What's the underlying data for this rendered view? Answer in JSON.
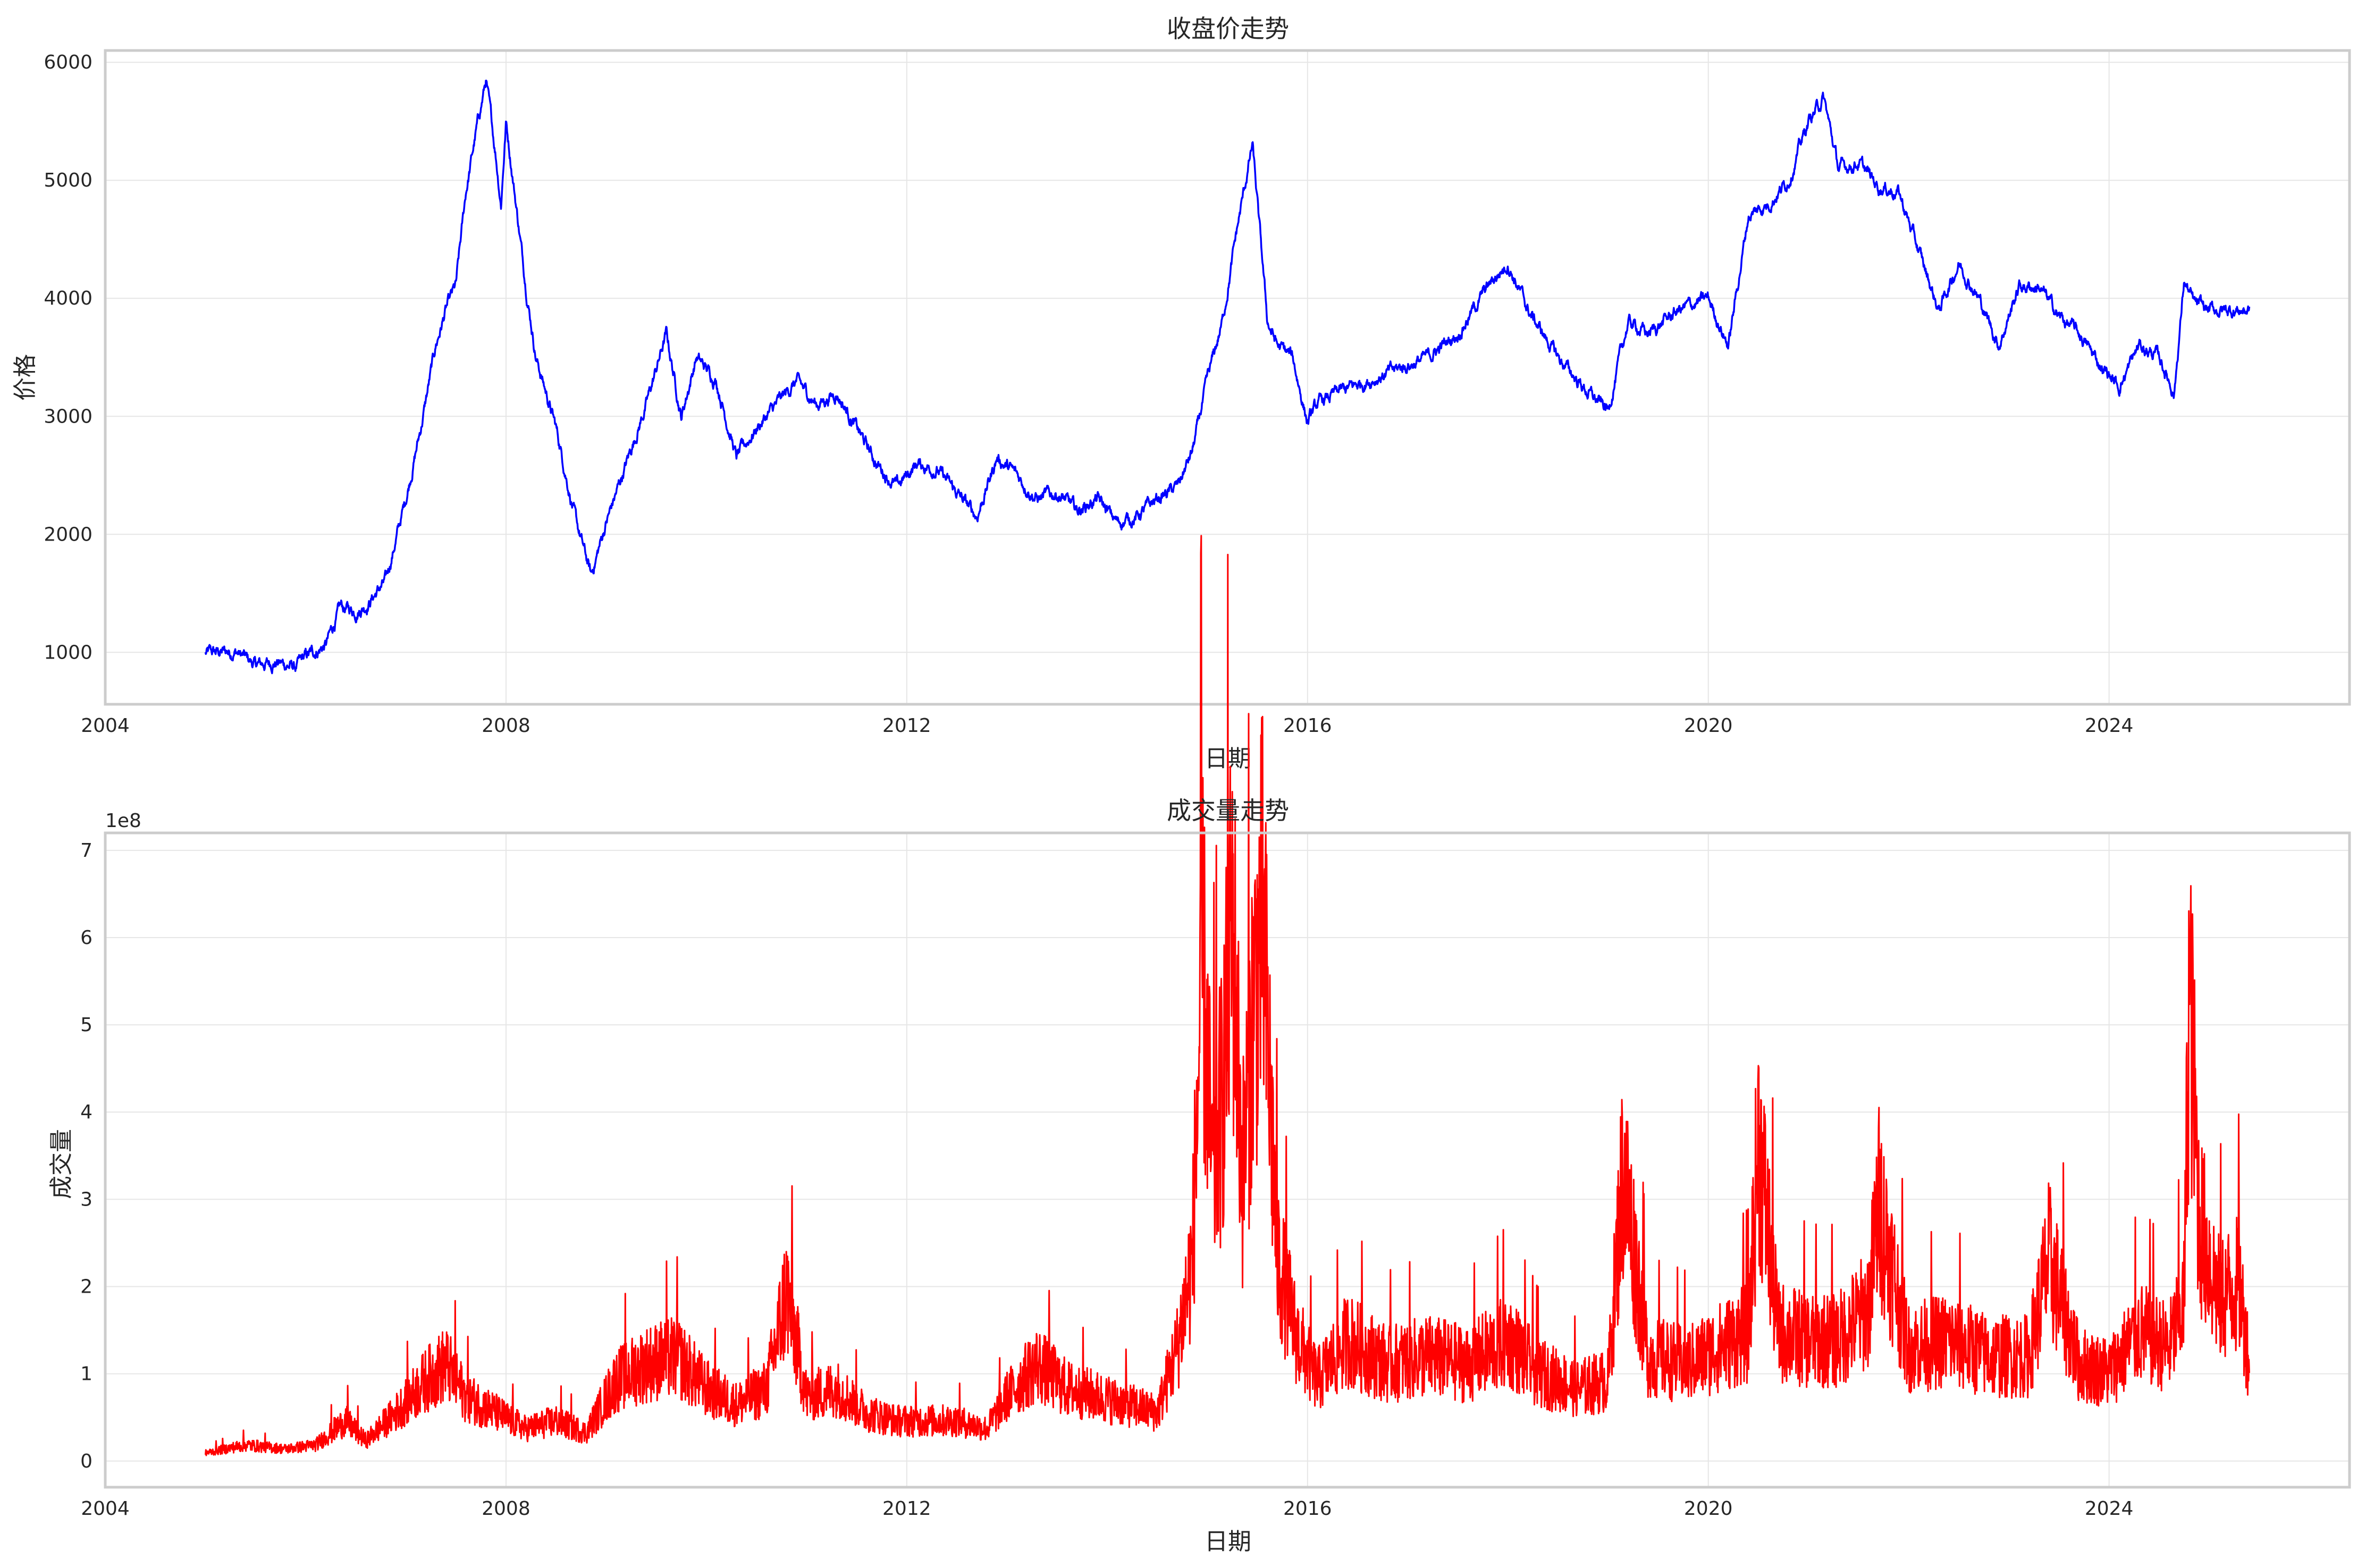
{
  "chart_data": [
    {
      "type": "line",
      "title": "收盘价走势",
      "xlabel": "日期",
      "ylabel": "价格",
      "x_ticks": [
        "2004",
        "2008",
        "2012",
        "2016",
        "2020",
        "2024"
      ],
      "y_ticks": [
        "1000",
        "2000",
        "3000",
        "4000",
        "5000",
        "6000"
      ],
      "xlim": [
        2004.0,
        2026.4
      ],
      "ylim": [
        560,
        6100
      ],
      "grid": true,
      "color": "#0000ff",
      "series": [
        {
          "x": [
            2005.0,
            2005.3,
            2005.5,
            2005.7,
            2005.9,
            2006.0,
            2006.2,
            2006.35,
            2006.5,
            2006.6,
            2006.8,
            2007.0,
            2007.15,
            2007.3,
            2007.4,
            2007.5,
            2007.6,
            2007.7,
            2007.8,
            2007.9,
            2007.95,
            2008.0,
            2008.1,
            2008.2,
            2008.3,
            2008.5,
            2008.7,
            2008.85,
            2009.0,
            2009.2,
            2009.4,
            2009.6,
            2009.75,
            2009.9,
            2010.1,
            2010.3,
            2010.5,
            2010.7,
            2010.9,
            2011.1,
            2011.3,
            2011.5,
            2011.7,
            2011.9,
            2012.1,
            2012.3,
            2012.5,
            2012.7,
            2012.9,
            2013.1,
            2013.3,
            2013.5,
            2013.7,
            2013.9,
            2014.1,
            2014.3,
            2014.5,
            2014.7,
            2014.85,
            2015.0,
            2015.15,
            2015.3,
            2015.45,
            2015.6,
            2015.7,
            2015.85,
            2016.0,
            2016.1,
            2016.3,
            2016.6,
            2016.9,
            2017.2,
            2017.5,
            2017.8,
            2018.0,
            2018.2,
            2018.5,
            2018.8,
            2019.0,
            2019.2,
            2019.4,
            2019.7,
            2020.0,
            2020.2,
            2020.4,
            2020.6,
            2020.8,
            2021.0,
            2021.15,
            2021.3,
            2021.5,
            2021.7,
            2021.9,
            2022.1,
            2022.3,
            2022.5,
            2022.7,
            2022.9,
            2023.1,
            2023.3,
            2023.5,
            2023.7,
            2023.9,
            2024.1,
            2024.3,
            2024.5,
            2024.65,
            2024.75,
            2024.85,
            2025.0,
            2025.2,
            2025.4
          ],
          "y": [
            990,
            1010,
            890,
            920,
            870,
            960,
            1060,
            1380,
            1350,
            1400,
            1600,
            2300,
            2900,
            3600,
            3900,
            4100,
            4900,
            5400,
            5850,
            5200,
            4800,
            5500,
            4800,
            4100,
            3500,
            2900,
            2100,
            1650,
            2100,
            2600,
            3100,
            3700,
            3000,
            3500,
            3300,
            2650,
            2900,
            3100,
            3300,
            3100,
            3200,
            2900,
            2600,
            2400,
            2600,
            2550,
            2350,
            2150,
            2650,
            2500,
            2300,
            2350,
            2200,
            2300,
            2100,
            2150,
            2300,
            2400,
            2700,
            3300,
            3800,
            4600,
            5300,
            3800,
            3600,
            3500,
            2950,
            3100,
            3200,
            3300,
            3400,
            3500,
            3700,
            4100,
            4300,
            3900,
            3500,
            3200,
            3050,
            3800,
            3700,
            3900,
            4000,
            3600,
            4700,
            4800,
            5000,
            5500,
            5700,
            5100,
            5150,
            4950,
            4900,
            4400,
            3900,
            4300,
            4000,
            3600,
            4100,
            4100,
            3850,
            3700,
            3450,
            3250,
            3600,
            3500,
            3200,
            4150,
            3950,
            3900,
            3900,
            3900
          ]
        }
      ]
    },
    {
      "type": "line",
      "title": "成交量走势",
      "xlabel": "日期",
      "ylabel": "成交量",
      "offset_text": "1e8",
      "x_ticks": [
        "2004",
        "2008",
        "2012",
        "2016",
        "2020",
        "2024"
      ],
      "y_ticks": [
        "0",
        "1",
        "2",
        "3",
        "4",
        "5",
        "6",
        "7"
      ],
      "xlim": [
        2004.0,
        2026.4
      ],
      "ylim": [
        -0.3,
        7.2
      ],
      "grid": true,
      "color": "#ff0000",
      "series": [
        {
          "x": [
            2005.0,
            2005.4,
            2005.8,
            2006.1,
            2006.4,
            2006.6,
            2006.9,
            2007.2,
            2007.4,
            2007.6,
            2007.9,
            2008.2,
            2008.5,
            2008.8,
            2009.1,
            2009.4,
            2009.7,
            2010.0,
            2010.3,
            2010.6,
            2010.8,
            2011.0,
            2011.3,
            2011.6,
            2011.9,
            2012.2,
            2012.5,
            2012.8,
            2013.0,
            2013.3,
            2013.6,
            2013.9,
            2014.2,
            2014.5,
            2014.7,
            2014.85,
            2014.95,
            2015.05,
            2015.15,
            2015.25,
            2015.35,
            2015.45,
            2015.55,
            2015.7,
            2015.9,
            2016.1,
            2016.4,
            2016.8,
            2017.2,
            2017.6,
            2018.0,
            2018.3,
            2018.7,
            2019.0,
            2019.15,
            2019.4,
            2019.8,
            2020.1,
            2020.4,
            2020.5,
            2020.7,
            2021.0,
            2021.3,
            2021.6,
            2021.7,
            2022.0,
            2022.4,
            2022.8,
            2023.2,
            2023.4,
            2023.7,
            2024.0,
            2024.3,
            2024.6,
            2024.75,
            2024.8,
            2024.9,
            2025.1,
            2025.3,
            2025.4
          ],
          "y": [
            0.1,
            0.2,
            0.15,
            0.2,
            0.5,
            0.25,
            0.6,
            1.0,
            1.2,
            0.8,
            0.6,
            0.4,
            0.5,
            0.35,
            1.0,
            1.2,
            1.3,
            0.9,
            0.7,
            0.9,
            2.1,
            0.8,
            0.9,
            0.6,
            0.5,
            0.5,
            0.5,
            0.4,
            0.8,
            1.2,
            0.9,
            0.8,
            0.7,
            0.6,
            1.4,
            2.5,
            6.3,
            3.5,
            4.5,
            6.8,
            3.5,
            5.5,
            6.7,
            2.5,
            1.5,
            1.0,
            1.5,
            1.2,
            1.3,
            1.2,
            1.5,
            1.1,
            0.9,
            1.0,
            3.6,
            1.3,
            1.2,
            1.4,
            1.6,
            4.0,
            1.6,
            1.5,
            1.5,
            1.9,
            3.2,
            1.4,
            1.5,
            1.3,
            1.3,
            2.5,
            1.2,
            1.1,
            1.6,
            1.4,
            2.0,
            5.9,
            3.0,
            2.0,
            2.2,
            1.2
          ]
        }
      ]
    }
  ]
}
